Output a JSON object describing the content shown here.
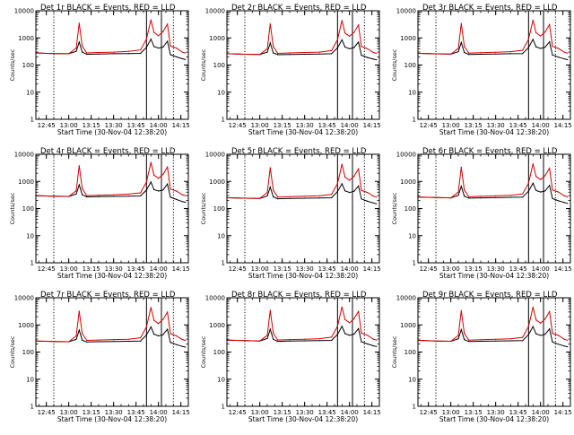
{
  "colors": {
    "events": "#000000",
    "lld": "#d40000",
    "axis": "#000000",
    "background": "#ffffff"
  },
  "chart_data": [
    {
      "type": "line",
      "title": "Det 1r BLACK = Events, RED = LLD",
      "xlabel": "Start Time (30-Nov-04 12:38:20)",
      "ylabel": "Counts/sec",
      "yscale": "log",
      "ylim": [
        1,
        10000
      ],
      "xlim": [
        "12:38",
        "14:20"
      ],
      "x_ticks": [
        "12:45",
        "13:00",
        "13:15",
        "13:30",
        "13:45",
        "14:00",
        "14:15"
      ],
      "y_ticks": [
        "1",
        "10",
        "100",
        "1000",
        "10000"
      ],
      "dotted_lines": [
        "12:50",
        "14:10"
      ],
      "solid_lines": [
        "13:52",
        "14:02"
      ],
      "x": [
        "12:38",
        "12:45",
        "12:50",
        "13:00",
        "13:05",
        "13:07",
        "13:09",
        "13:12",
        "13:20",
        "13:30",
        "13:40",
        "13:48",
        "13:52",
        "13:55",
        "13:57",
        "14:00",
        "14:03",
        "14:06",
        "14:08",
        "14:12",
        "14:16",
        "14:18"
      ],
      "series": [
        {
          "name": "BLACK = Events",
          "values": [
            280,
            270,
            265,
            260,
            320,
            700,
            300,
            250,
            255,
            260,
            265,
            270,
            450,
            900,
            480,
            420,
            460,
            750,
            240,
            200,
            170,
            160
          ]
        },
        {
          "name": "RED = LLD",
          "values": [
            280,
            270,
            265,
            260,
            420,
            3500,
            500,
            280,
            290,
            300,
            320,
            360,
            900,
            4600,
            1600,
            1200,
            1700,
            3200,
            500,
            420,
            300,
            280
          ]
        }
      ]
    },
    {
      "type": "line",
      "title": "Det 2r BLACK = Events, RED = LLD",
      "xlabel": "Start Time (30-Nov-04 12:38:20)",
      "ylabel": "Counts/sec",
      "yscale": "log",
      "ylim": [
        1,
        10000
      ],
      "xlim": [
        "12:38",
        "14:20"
      ],
      "x_ticks": [
        "12:45",
        "13:00",
        "13:15",
        "13:30",
        "13:45",
        "14:00",
        "14:15"
      ],
      "y_ticks": [
        "1",
        "10",
        "100",
        "1000",
        "10000"
      ],
      "dotted_lines": [
        "12:50",
        "14:10"
      ],
      "solid_lines": [
        "13:52",
        "14:02"
      ],
      "x": [
        "12:38",
        "12:45",
        "12:50",
        "13:00",
        "13:05",
        "13:07",
        "13:09",
        "13:12",
        "13:20",
        "13:30",
        "13:40",
        "13:48",
        "13:52",
        "13:55",
        "13:57",
        "14:00",
        "14:03",
        "14:06",
        "14:08",
        "14:12",
        "14:16",
        "14:18"
      ],
      "series": [
        {
          "name": "BLACK = Events",
          "values": [
            260,
            255,
            250,
            245,
            300,
            650,
            280,
            240,
            245,
            250,
            255,
            260,
            430,
            850,
            460,
            400,
            440,
            700,
            230,
            190,
            165,
            155
          ]
        },
        {
          "name": "RED = LLD",
          "values": [
            260,
            255,
            250,
            245,
            400,
            3300,
            480,
            270,
            280,
            290,
            300,
            340,
            850,
            4400,
            1500,
            1150,
            1600,
            3000,
            480,
            400,
            290,
            270
          ]
        }
      ]
    },
    {
      "type": "line",
      "title": "Det 3r BLACK = Events, RED = LLD",
      "xlabel": "Start Time (30-Nov-04 12:38:20)",
      "ylabel": "Counts/sec",
      "yscale": "log",
      "ylim": [
        1,
        10000
      ],
      "xlim": [
        "12:38",
        "14:20"
      ],
      "x_ticks": [
        "12:45",
        "13:00",
        "13:15",
        "13:30",
        "13:45",
        "14:00",
        "14:15"
      ],
      "y_ticks": [
        "1",
        "10",
        "100",
        "1000",
        "10000"
      ],
      "dotted_lines": [
        "12:50",
        "14:10"
      ],
      "solid_lines": [
        "13:52",
        "14:02"
      ],
      "x": [
        "12:38",
        "12:45",
        "12:50",
        "13:00",
        "13:05",
        "13:07",
        "13:09",
        "13:12",
        "13:20",
        "13:30",
        "13:40",
        "13:48",
        "13:52",
        "13:55",
        "13:57",
        "14:00",
        "14:03",
        "14:06",
        "14:08",
        "14:12",
        "14:16",
        "14:18"
      ],
      "series": [
        {
          "name": "BLACK = Events",
          "values": [
            270,
            262,
            258,
            252,
            310,
            680,
            290,
            245,
            250,
            255,
            260,
            265,
            440,
            880,
            470,
            410,
            450,
            720,
            235,
            195,
            168,
            158
          ]
        },
        {
          "name": "RED = LLD",
          "values": [
            270,
            262,
            258,
            252,
            410,
            3400,
            490,
            275,
            285,
            295,
            310,
            350,
            880,
            4500,
            1550,
            1180,
            1650,
            3100,
            490,
            410,
            295,
            275
          ]
        }
      ]
    },
    {
      "type": "line",
      "title": "Det 4r BLACK = Events, RED = LLD",
      "xlabel": "Start Time (30-Nov-04 12:38:20)",
      "ylabel": "Counts/sec",
      "yscale": "log",
      "ylim": [
        1,
        10000
      ],
      "xlim": [
        "12:38",
        "14:20"
      ],
      "x_ticks": [
        "12:45",
        "13:00",
        "13:15",
        "13:30",
        "13:45",
        "14:00",
        "14:15"
      ],
      "y_ticks": [
        "1",
        "10",
        "100",
        "1000",
        "10000"
      ],
      "dotted_lines": [
        "12:50",
        "14:10"
      ],
      "solid_lines": [
        "13:52",
        "14:02"
      ],
      "x": [
        "12:38",
        "12:45",
        "12:50",
        "13:00",
        "13:05",
        "13:07",
        "13:09",
        "13:12",
        "13:20",
        "13:30",
        "13:40",
        "13:48",
        "13:52",
        "13:55",
        "13:57",
        "14:00",
        "14:03",
        "14:06",
        "14:08",
        "14:12",
        "14:16",
        "14:18"
      ],
      "series": [
        {
          "name": "BLACK = Events",
          "values": [
            300,
            290,
            285,
            280,
            340,
            750,
            320,
            270,
            275,
            280,
            285,
            290,
            480,
            950,
            500,
            440,
            480,
            800,
            260,
            215,
            180,
            170
          ]
        },
        {
          "name": "RED = LLD",
          "values": [
            300,
            290,
            285,
            280,
            450,
            3800,
            540,
            300,
            310,
            320,
            340,
            380,
            950,
            5000,
            1700,
            1300,
            1800,
            3400,
            520,
            440,
            320,
            300
          ]
        }
      ]
    },
    {
      "type": "line",
      "title": "Det 5r BLACK = Events, RED = LLD",
      "xlabel": "Start Time (30-Nov-04 12:38:20)",
      "ylabel": "Counts/sec",
      "yscale": "log",
      "ylim": [
        1,
        10000
      ],
      "xlim": [
        "12:38",
        "14:20"
      ],
      "x_ticks": [
        "12:45",
        "13:00",
        "13:15",
        "13:30",
        "13:45",
        "14:00",
        "14:15"
      ],
      "y_ticks": [
        "1",
        "10",
        "100",
        "1000",
        "10000"
      ],
      "dotted_lines": [
        "12:50",
        "14:10"
      ],
      "solid_lines": [
        "13:52",
        "14:02"
      ],
      "x": [
        "12:38",
        "12:45",
        "12:50",
        "13:00",
        "13:05",
        "13:07",
        "13:09",
        "13:12",
        "13:20",
        "13:30",
        "13:40",
        "13:48",
        "13:52",
        "13:55",
        "13:57",
        "14:00",
        "14:03",
        "14:06",
        "14:08",
        "14:12",
        "14:16",
        "14:18"
      ],
      "series": [
        {
          "name": "BLACK = Events",
          "values": [
            250,
            245,
            240,
            235,
            290,
            620,
            270,
            230,
            235,
            240,
            245,
            250,
            420,
            820,
            450,
            390,
            430,
            680,
            225,
            185,
            160,
            150
          ]
        },
        {
          "name": "RED = LLD",
          "values": [
            250,
            245,
            240,
            235,
            390,
            3200,
            470,
            265,
            275,
            285,
            295,
            330,
            830,
            4300,
            1450,
            1100,
            1550,
            2900,
            470,
            390,
            285,
            265
          ]
        }
      ]
    },
    {
      "type": "line",
      "title": "Det 6r BLACK = Events, RED = LLD",
      "xlabel": "Start Time (30-Nov-04 12:38:20)",
      "ylabel": "Counts/sec",
      "yscale": "log",
      "ylim": [
        1,
        10000
      ],
      "xlim": [
        "12:38",
        "14:20"
      ],
      "x_ticks": [
        "12:45",
        "13:00",
        "13:15",
        "13:30",
        "13:45",
        "14:00",
        "14:15"
      ],
      "y_ticks": [
        "1",
        "10",
        "100",
        "1000",
        "10000"
      ],
      "dotted_lines": [
        "12:50",
        "14:10"
      ],
      "solid_lines": [
        "13:52",
        "14:02"
      ],
      "x": [
        "12:38",
        "12:45",
        "12:50",
        "13:00",
        "13:05",
        "13:07",
        "13:09",
        "13:12",
        "13:20",
        "13:30",
        "13:40",
        "13:48",
        "13:52",
        "13:55",
        "13:57",
        "14:00",
        "14:03",
        "14:06",
        "14:08",
        "14:12",
        "14:16",
        "14:18"
      ],
      "series": [
        {
          "name": "BLACK = Events",
          "values": [
            265,
            258,
            254,
            248,
            305,
            660,
            285,
            242,
            248,
            252,
            258,
            262,
            435,
            860,
            465,
            405,
            445,
            710,
            232,
            192,
            166,
            156
          ]
        },
        {
          "name": "RED = LLD",
          "values": [
            265,
            258,
            254,
            248,
            405,
            3350,
            485,
            272,
            282,
            292,
            305,
            345,
            865,
            4450,
            1520,
            1160,
            1620,
            3050,
            485,
            405,
            292,
            272
          ]
        }
      ]
    },
    {
      "type": "line",
      "title": "Det 7r BLACK = Events, RED = LLD",
      "xlabel": "Start Time (30-Nov-04 12:38:20)",
      "ylabel": "Counts/sec",
      "yscale": "log",
      "ylim": [
        1,
        10000
      ],
      "xlim": [
        "12:38",
        "14:20"
      ],
      "x_ticks": [
        "12:45",
        "13:00",
        "13:15",
        "13:30",
        "13:45",
        "14:00",
        "14:15"
      ],
      "y_ticks": [
        "1",
        "10",
        "100",
        "1000",
        "10000"
      ],
      "dotted_lines": [
        "12:50",
        "14:10"
      ],
      "solid_lines": [
        "13:52",
        "14:02"
      ],
      "x": [
        "12:38",
        "12:45",
        "12:50",
        "13:00",
        "13:05",
        "13:07",
        "13:09",
        "13:12",
        "13:20",
        "13:30",
        "13:40",
        "13:48",
        "13:52",
        "13:55",
        "13:57",
        "14:00",
        "14:03",
        "14:06",
        "14:08",
        "14:12",
        "14:16",
        "14:18"
      ],
      "series": [
        {
          "name": "BLACK = Events",
          "values": [
            255,
            250,
            245,
            240,
            295,
            640,
            275,
            235,
            240,
            245,
            250,
            255,
            425,
            840,
            455,
            395,
            435,
            690,
            228,
            188,
            162,
            152
          ]
        },
        {
          "name": "RED = LLD",
          "values": [
            255,
            250,
            245,
            240,
            395,
            3250,
            475,
            268,
            278,
            288,
            298,
            335,
            840,
            4350,
            1480,
            1120,
            1580,
            2950,
            475,
            395,
            288,
            268
          ]
        }
      ]
    },
    {
      "type": "line",
      "title": "Det 8r BLACK = Events, RED = LLD",
      "xlabel": "Start Time (30-Nov-04 12:38:20)",
      "ylabel": "Counts/sec",
      "yscale": "log",
      "ylim": [
        1,
        10000
      ],
      "xlim": [
        "12:38",
        "14:20"
      ],
      "x_ticks": [
        "12:45",
        "13:00",
        "13:15",
        "13:30",
        "13:45",
        "14:00",
        "14:15"
      ],
      "y_ticks": [
        "1",
        "10",
        "100",
        "1000",
        "10000"
      ],
      "dotted_lines": [
        "12:50",
        "14:10"
      ],
      "solid_lines": [
        "13:52",
        "14:02"
      ],
      "x": [
        "12:38",
        "12:45",
        "12:50",
        "13:00",
        "13:05",
        "13:07",
        "13:09",
        "13:12",
        "13:20",
        "13:30",
        "13:40",
        "13:48",
        "13:52",
        "13:55",
        "13:57",
        "14:00",
        "14:03",
        "14:06",
        "14:08",
        "14:12",
        "14:16",
        "14:18"
      ],
      "series": [
        {
          "name": "BLACK = Events",
          "values": [
            275,
            268,
            262,
            256,
            315,
            690,
            295,
            248,
            253,
            258,
            263,
            268,
            445,
            890,
            475,
            415,
            455,
            730,
            238,
            198,
            170,
            160
          ]
        },
        {
          "name": "RED = LLD",
          "values": [
            275,
            268,
            262,
            256,
            415,
            3450,
            495,
            278,
            288,
            298,
            312,
            355,
            890,
            4550,
            1580,
            1200,
            1680,
            3150,
            495,
            415,
            298,
            278
          ]
        }
      ]
    },
    {
      "type": "line",
      "title": "Det 9r BLACK = Events, RED = LLD",
      "xlabel": "Start Time (30-Nov-04 12:38:20)",
      "ylabel": "Counts/sec",
      "yscale": "log",
      "ylim": [
        1,
        10000
      ],
      "xlim": [
        "12:38",
        "14:20"
      ],
      "x_ticks": [
        "12:45",
        "13:00",
        "13:15",
        "13:30",
        "13:45",
        "14:00",
        "14:15"
      ],
      "y_ticks": [
        "1",
        "10",
        "100",
        "1000",
        "10000"
      ],
      "dotted_lines": [
        "12:50",
        "14:10"
      ],
      "solid_lines": [
        "13:52",
        "14:02"
      ],
      "x": [
        "12:38",
        "12:45",
        "12:50",
        "13:00",
        "13:05",
        "13:07",
        "13:09",
        "13:12",
        "13:20",
        "13:30",
        "13:40",
        "13:48",
        "13:52",
        "13:55",
        "13:57",
        "14:00",
        "14:03",
        "14:06",
        "14:08",
        "14:12",
        "14:16",
        "14:18"
      ],
      "series": [
        {
          "name": "BLACK = Events",
          "values": [
            268,
            260,
            256,
            250,
            308,
            670,
            288,
            244,
            249,
            254,
            259,
            264,
            438,
            870,
            468,
            408,
            448,
            715,
            233,
            194,
            167,
            157
          ]
        },
        {
          "name": "RED = LLD",
          "values": [
            268,
            260,
            256,
            250,
            408,
            3380,
            488,
            274,
            284,
            294,
            307,
            348,
            875,
            4480,
            1530,
            1170,
            1630,
            3080,
            488,
            408,
            294,
            274
          ]
        }
      ]
    }
  ]
}
